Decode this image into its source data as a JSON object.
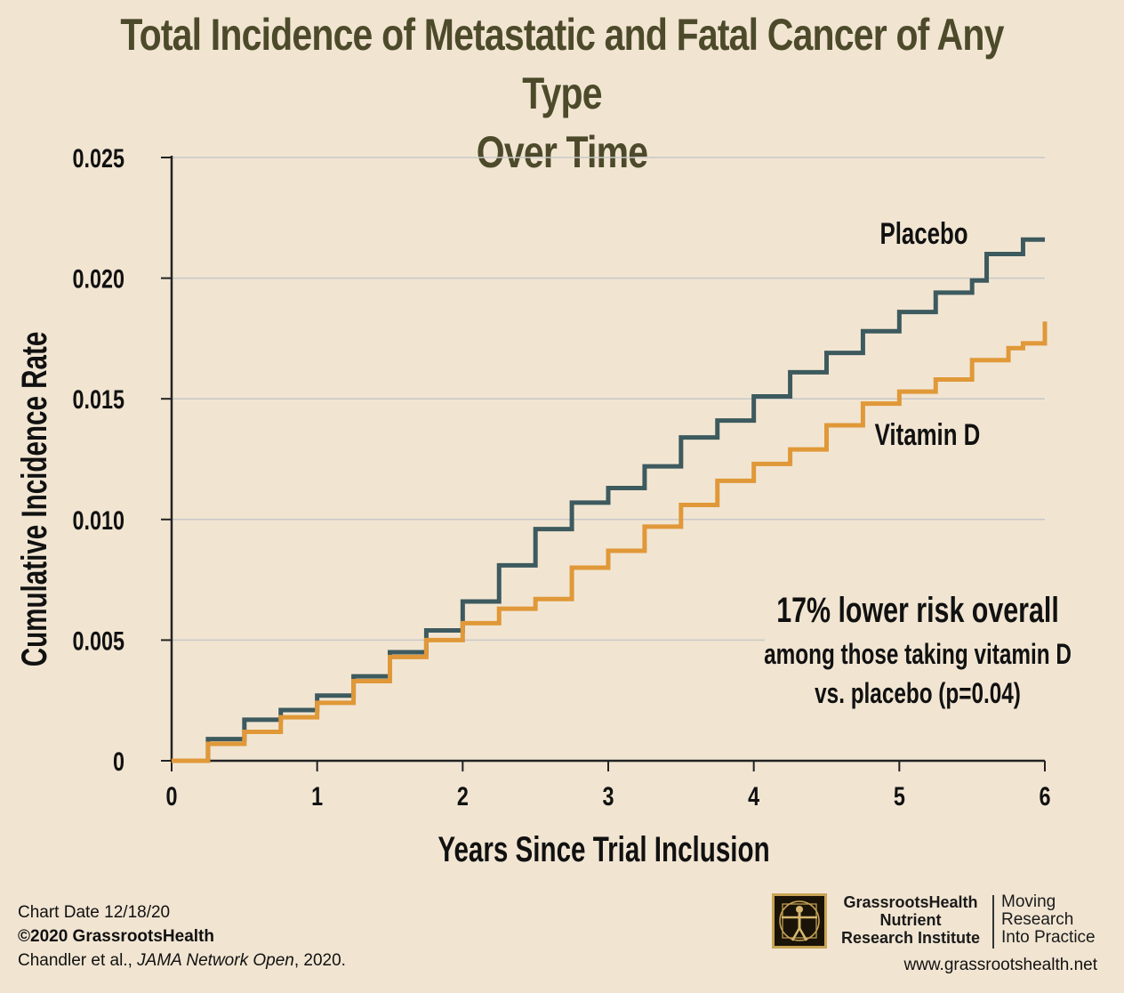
{
  "title_line1": "Total Incidence of Metastatic and Fatal Cancer of Any Type",
  "title_line2": "Over Time",
  "footer": {
    "chart_date": "Chart Date 12/18/20",
    "copyright": "©2020 GrassrootsHealth",
    "citation_authors": "Chandler et al., ",
    "citation_journal": "JAMA Network Open",
    "citation_year": ", 2020."
  },
  "logo": {
    "org_line1": "GrassrootsHealth",
    "org_line2": "Nutrient",
    "org_line3": "Research Institute",
    "tagline_line1": "Moving",
    "tagline_line2": "Research",
    "tagline_line3": "Into Practice"
  },
  "website": "www.grassrootshealth.net",
  "colors": {
    "background": "#f1e5d2",
    "title": "#4c4a2a",
    "placebo": "#3d5a5e",
    "vitamin_d": "#e09838",
    "grid": "#c8c8c8"
  },
  "chart_data": {
    "type": "line",
    "step": true,
    "xlabel": "Years Since Trial Inclusion",
    "ylabel": "Cumulative Incidence Rate",
    "xlim": [
      0,
      6
    ],
    "ylim": [
      0,
      0.025
    ],
    "x_ticks": [
      "0",
      "1",
      "2",
      "3",
      "4",
      "5",
      "6"
    ],
    "y_ticks": [
      "0",
      "0.005",
      "0.010",
      "0.015",
      "0.020",
      "0.025"
    ],
    "grid": "horizontal",
    "series": [
      {
        "name": "Placebo",
        "color": "#3d5a5e",
        "x": [
          0,
          0.25,
          0.5,
          0.75,
          1.0,
          1.25,
          1.5,
          1.75,
          2.0,
          2.25,
          2.5,
          2.75,
          3.0,
          3.25,
          3.5,
          3.75,
          4.0,
          4.25,
          4.5,
          4.75,
          5.0,
          5.25,
          5.5,
          5.6,
          5.85,
          6.0
        ],
        "y": [
          0,
          0.0009,
          0.0017,
          0.0021,
          0.0027,
          0.0035,
          0.0045,
          0.0054,
          0.0066,
          0.0081,
          0.0096,
          0.0107,
          0.0113,
          0.0122,
          0.0134,
          0.0141,
          0.0151,
          0.0161,
          0.0169,
          0.0178,
          0.0186,
          0.0194,
          0.0199,
          0.021,
          0.0216,
          0.0216
        ]
      },
      {
        "name": "Vitamin D",
        "color": "#e09838",
        "x": [
          0,
          0.25,
          0.5,
          0.75,
          1.0,
          1.25,
          1.5,
          1.75,
          2.0,
          2.25,
          2.5,
          2.75,
          3.0,
          3.25,
          3.5,
          3.75,
          4.0,
          4.25,
          4.5,
          4.75,
          5.0,
          5.25,
          5.5,
          5.75,
          5.85,
          6.0
        ],
        "y": [
          0,
          0.0007,
          0.0012,
          0.0018,
          0.0024,
          0.0033,
          0.0043,
          0.005,
          0.0057,
          0.0063,
          0.0067,
          0.008,
          0.0087,
          0.0097,
          0.0106,
          0.0116,
          0.0123,
          0.0129,
          0.0139,
          0.0148,
          0.0153,
          0.0158,
          0.0166,
          0.0171,
          0.0173,
          0.0182
        ]
      }
    ],
    "annotations": {
      "headline": "17% lower risk overall",
      "line2": "among those taking vitamin D",
      "line3": "vs. placebo (p=0.04)"
    }
  }
}
